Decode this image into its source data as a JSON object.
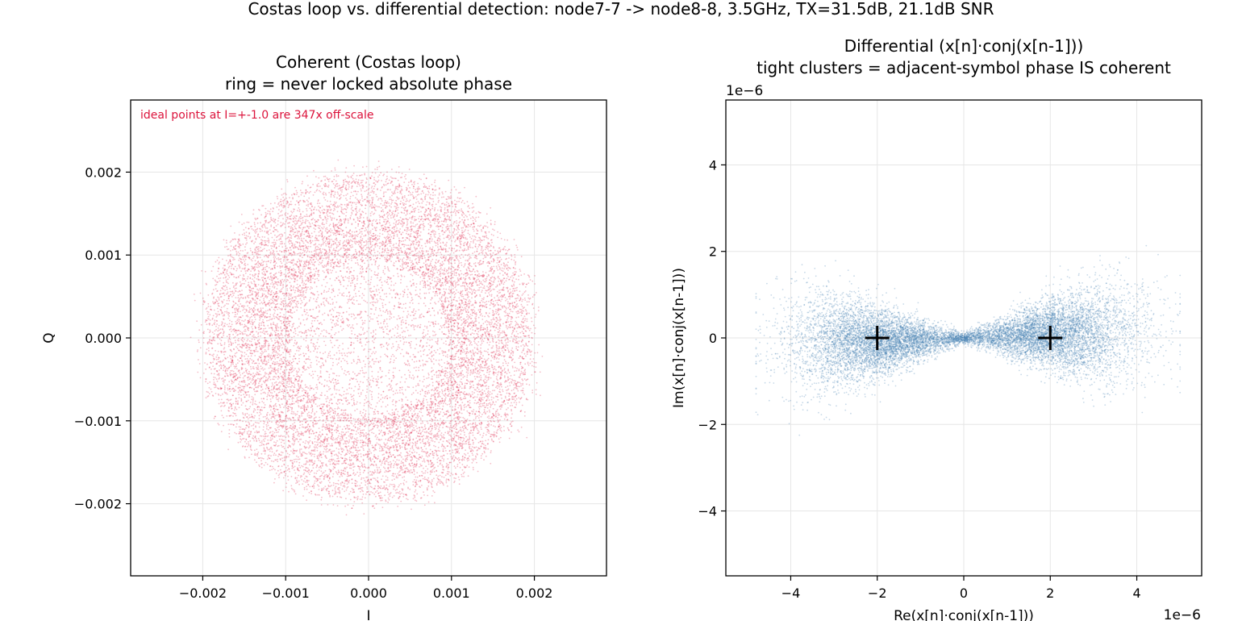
{
  "suptitle": "Costas loop vs. differential detection: node7-7 -> node8-8, 3.5GHz, TX=31.5dB, 21.1dB SNR",
  "colors": {
    "coherent": "#dc143c",
    "differential": "#4682b4",
    "ideal_marker": "#000000",
    "annotation": "#dc143c",
    "grid": "#e6e6e6"
  },
  "chart_data": [
    {
      "type": "scatter",
      "title": "Coherent (Costas loop)",
      "subtitle": "ring = never locked absolute phase",
      "xlabel": "I",
      "ylabel": "Q",
      "xlim": [
        -0.00287,
        0.00287
      ],
      "ylim": [
        -0.00287,
        0.00287
      ],
      "xticks": [
        -0.002,
        -0.001,
        0.0,
        0.001,
        0.002
      ],
      "xtick_labels": [
        "−0.002",
        "−0.001",
        "0.000",
        "0.001",
        "0.002"
      ],
      "yticks": [
        -0.002,
        -0.001,
        0.0,
        0.001,
        0.002
      ],
      "ytick_labels": [
        "−0.002",
        "−0.001",
        "0.000",
        "0.001",
        "0.002"
      ],
      "grid": true,
      "annotation": "ideal points at I=+-1.0 are 347x off-scale",
      "series": [
        {
          "shape": "ring",
          "inner_radius": 0.00105,
          "outer_radius": 0.00198,
          "max_radius": 0.00245,
          "center": [
            0.0,
            0.0
          ]
        }
      ]
    },
    {
      "type": "scatter",
      "title": "Differential (x[n]·conj(x[n-1]))",
      "subtitle": "tight clusters = adjacent-symbol phase IS coherent",
      "xlabel": "Re(x[n]·conj(x[n-1]))",
      "ylabel": "Im(x[n]·conj(x[n-1]))",
      "x_offset_label": "1e−6",
      "y_offset_label": "1e−6",
      "scale": 1e-06,
      "xlim": [
        -5.5,
        5.5
      ],
      "ylim": [
        -5.5,
        5.5
      ],
      "xticks": [
        -4,
        -2,
        0,
        2,
        4
      ],
      "xtick_labels": [
        "−4",
        "−2",
        "0",
        "2",
        "4"
      ],
      "yticks": [
        -4,
        -2,
        0,
        2,
        4
      ],
      "ytick_labels": [
        "−4",
        "−2",
        "0",
        "2",
        "4"
      ],
      "grid": true,
      "series": [
        {
          "shape": "clusters",
          "clusters": [
            {
              "center": [
                -2.0,
                -0.1
              ],
              "x_extent": [
                -4.7,
                0.2
              ]
            },
            {
              "center": [
                2.0,
                0.1
              ],
              "x_extent": [
                0.2,
                5.0
              ]
            }
          ]
        },
        {
          "ideal_points": [
            [
              -2.0,
              0.0
            ],
            [
              2.0,
              0.0
            ]
          ]
        }
      ]
    }
  ]
}
